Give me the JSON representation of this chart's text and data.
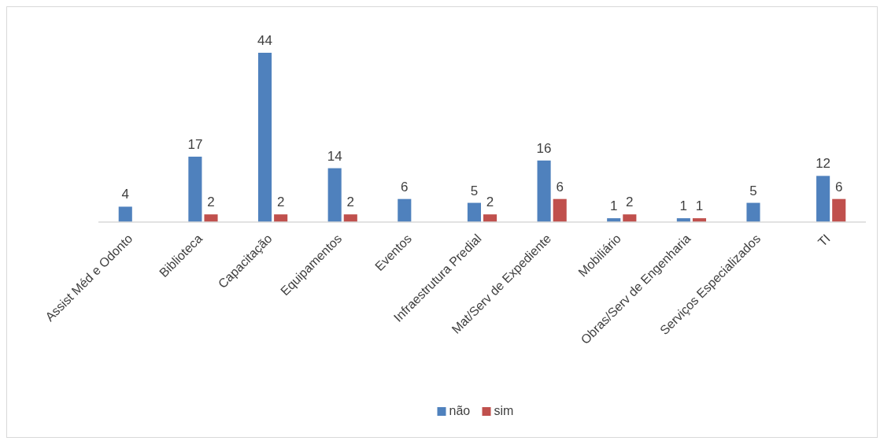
{
  "chart_data": {
    "type": "bar",
    "categories": [
      "Assist Méd e Odonto",
      "Biblioteca",
      "Capacitação",
      "Equipamentos",
      "Eventos",
      "Infraestrutura Predial",
      "Mat/Serv de Expediente",
      "Mobiliário",
      "Obras/Serv de Engenharia",
      "Serviços Especializados",
      "TI"
    ],
    "series": [
      {
        "name": "não",
        "color": "#4f81bd",
        "values": [
          4,
          17,
          44,
          14,
          6,
          5,
          16,
          1,
          1,
          5,
          12
        ]
      },
      {
        "name": "sim",
        "color": "#c0504d",
        "values": [
          null,
          2,
          2,
          2,
          null,
          2,
          6,
          2,
          1,
          null,
          6
        ]
      }
    ],
    "data_labels": true,
    "legend": "bottom"
  }
}
